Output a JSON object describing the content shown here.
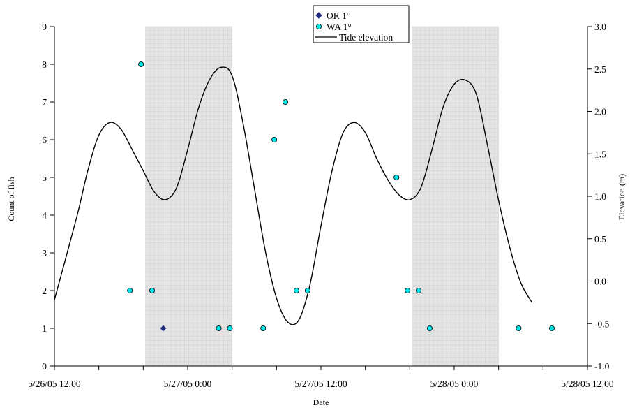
{
  "chart_data": {
    "type": "scatter",
    "xlabel": "Date",
    "ylabel": "Count of fish",
    "y2label": "Elevation (m)",
    "x_ticks": [
      "5/26/05 12:00",
      "5/27/05 0:00",
      "5/27/05 12:00",
      "5/28/05 0:00",
      "5/28/05 12:00"
    ],
    "x_range_hours": [
      0,
      48
    ],
    "x_minor_tick_hours": 4,
    "ylim": [
      0,
      9
    ],
    "y_ticks": [
      "0",
      "1",
      "2",
      "3",
      "4",
      "5",
      "6",
      "7",
      "8",
      "9"
    ],
    "y2lim": [
      -1.0,
      3.0
    ],
    "y2_ticks": [
      "-1.0",
      "-0.5",
      "0.0",
      "0.5",
      "1.0",
      "1.5",
      "2.0",
      "2.5",
      "3.0"
    ],
    "shaded_periods_hours": [
      [
        8.2,
        16.0
      ],
      [
        32.2,
        40.0
      ]
    ],
    "legend_position": "top-center",
    "series": [
      {
        "name": "OR 1°",
        "marker": "diamond",
        "color": "#1f2a7a",
        "points": [
          [
            9.8,
            1
          ]
        ]
      },
      {
        "name": "WA 1°",
        "marker": "circle",
        "color": "#00e5e5",
        "points": [
          [
            7.8,
            8
          ],
          [
            6.8,
            2
          ],
          [
            8.8,
            2
          ],
          [
            14.8,
            1
          ],
          [
            15.8,
            1
          ],
          [
            18.8,
            1
          ],
          [
            19.8,
            6
          ],
          [
            20.8,
            7
          ],
          [
            21.8,
            2
          ],
          [
            22.8,
            2
          ],
          [
            30.8,
            5
          ],
          [
            31.8,
            2
          ],
          [
            32.8,
            2
          ],
          [
            33.8,
            1
          ],
          [
            41.8,
            1
          ],
          [
            44.8,
            1
          ]
        ]
      },
      {
        "name": "Tide elevation",
        "type": "line",
        "color": "#000000",
        "points": [
          [
            0,
            -0.22
          ],
          [
            2,
            0.75
          ],
          [
            3,
            1.3
          ],
          [
            4,
            1.72
          ],
          [
            5,
            1.87
          ],
          [
            6,
            1.79
          ],
          [
            7,
            1.55
          ],
          [
            8,
            1.3
          ],
          [
            9,
            1.05
          ],
          [
            10,
            0.96
          ],
          [
            11,
            1.1
          ],
          [
            12,
            1.55
          ],
          [
            13,
            2.05
          ],
          [
            14,
            2.38
          ],
          [
            15,
            2.52
          ],
          [
            16,
            2.42
          ],
          [
            17,
            1.85
          ],
          [
            18,
            1.1
          ],
          [
            19,
            0.35
          ],
          [
            20,
            -0.2
          ],
          [
            21,
            -0.48
          ],
          [
            22,
            -0.46
          ],
          [
            23,
            -0.05
          ],
          [
            24,
            0.65
          ],
          [
            25,
            1.3
          ],
          [
            26,
            1.75
          ],
          [
            27,
            1.87
          ],
          [
            28,
            1.75
          ],
          [
            29,
            1.45
          ],
          [
            30,
            1.2
          ],
          [
            31,
            1.02
          ],
          [
            32,
            0.96
          ],
          [
            33,
            1.1
          ],
          [
            34,
            1.55
          ],
          [
            35,
            2.05
          ],
          [
            36,
            2.32
          ],
          [
            37,
            2.37
          ],
          [
            38,
            2.2
          ],
          [
            39,
            1.6
          ],
          [
            40,
            0.95
          ],
          [
            41,
            0.4
          ],
          [
            42,
            -0.02
          ],
          [
            43,
            -0.25
          ]
        ]
      }
    ]
  }
}
